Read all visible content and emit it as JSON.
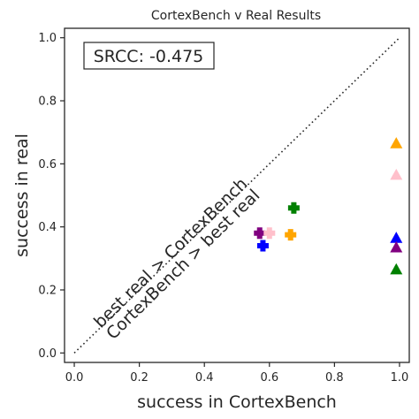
{
  "chart_data": {
    "type": "scatter",
    "title": "CortexBench v Real Results",
    "xlabel": "success in CortexBench",
    "ylabel": "success in real",
    "xlim": [
      -0.03,
      1.03
    ],
    "ylim": [
      -0.03,
      1.03
    ],
    "xticks": [
      0.0,
      0.2,
      0.4,
      0.6,
      0.8,
      1.0
    ],
    "xtick_labels": [
      "0.0",
      "0.2",
      "0.4",
      "0.6",
      "0.8",
      "1.0"
    ],
    "yticks": [
      0.0,
      0.2,
      0.4,
      0.6,
      0.8,
      1.0
    ],
    "ytick_labels": [
      "0.0",
      "0.2",
      "0.4",
      "0.6",
      "0.8",
      "1.0"
    ],
    "grid": false,
    "reference_line": {
      "style": "dotted",
      "x": [
        0,
        1
      ],
      "y": [
        0,
        1
      ],
      "color": "#262626"
    },
    "annotations": {
      "srcc": "SRCC: -0.475",
      "upper": "best real > CortexBench",
      "lower": "CortexBench > best real"
    },
    "points": [
      {
        "marker": "plus",
        "color": "#800080",
        "x": 0.57,
        "y": 0.38
      },
      {
        "marker": "plus",
        "color": "#ffc0cb",
        "x": 0.6,
        "y": 0.38
      },
      {
        "marker": "plus",
        "color": "#0000ff",
        "x": 0.58,
        "y": 0.34
      },
      {
        "marker": "plus",
        "color": "#ffa500",
        "x": 0.665,
        "y": 0.375
      },
      {
        "marker": "plus",
        "color": "#008000",
        "x": 0.675,
        "y": 0.46
      },
      {
        "marker": "triangle",
        "color": "#ffa500",
        "x": 0.99,
        "y": 0.665
      },
      {
        "marker": "triangle",
        "color": "#ffc0cb",
        "x": 0.99,
        "y": 0.565
      },
      {
        "marker": "triangle",
        "color": "#0000ff",
        "x": 0.99,
        "y": 0.365
      },
      {
        "marker": "triangle",
        "color": "#800080",
        "x": 0.99,
        "y": 0.335
      },
      {
        "marker": "triangle",
        "color": "#008000",
        "x": 0.99,
        "y": 0.265
      }
    ]
  }
}
